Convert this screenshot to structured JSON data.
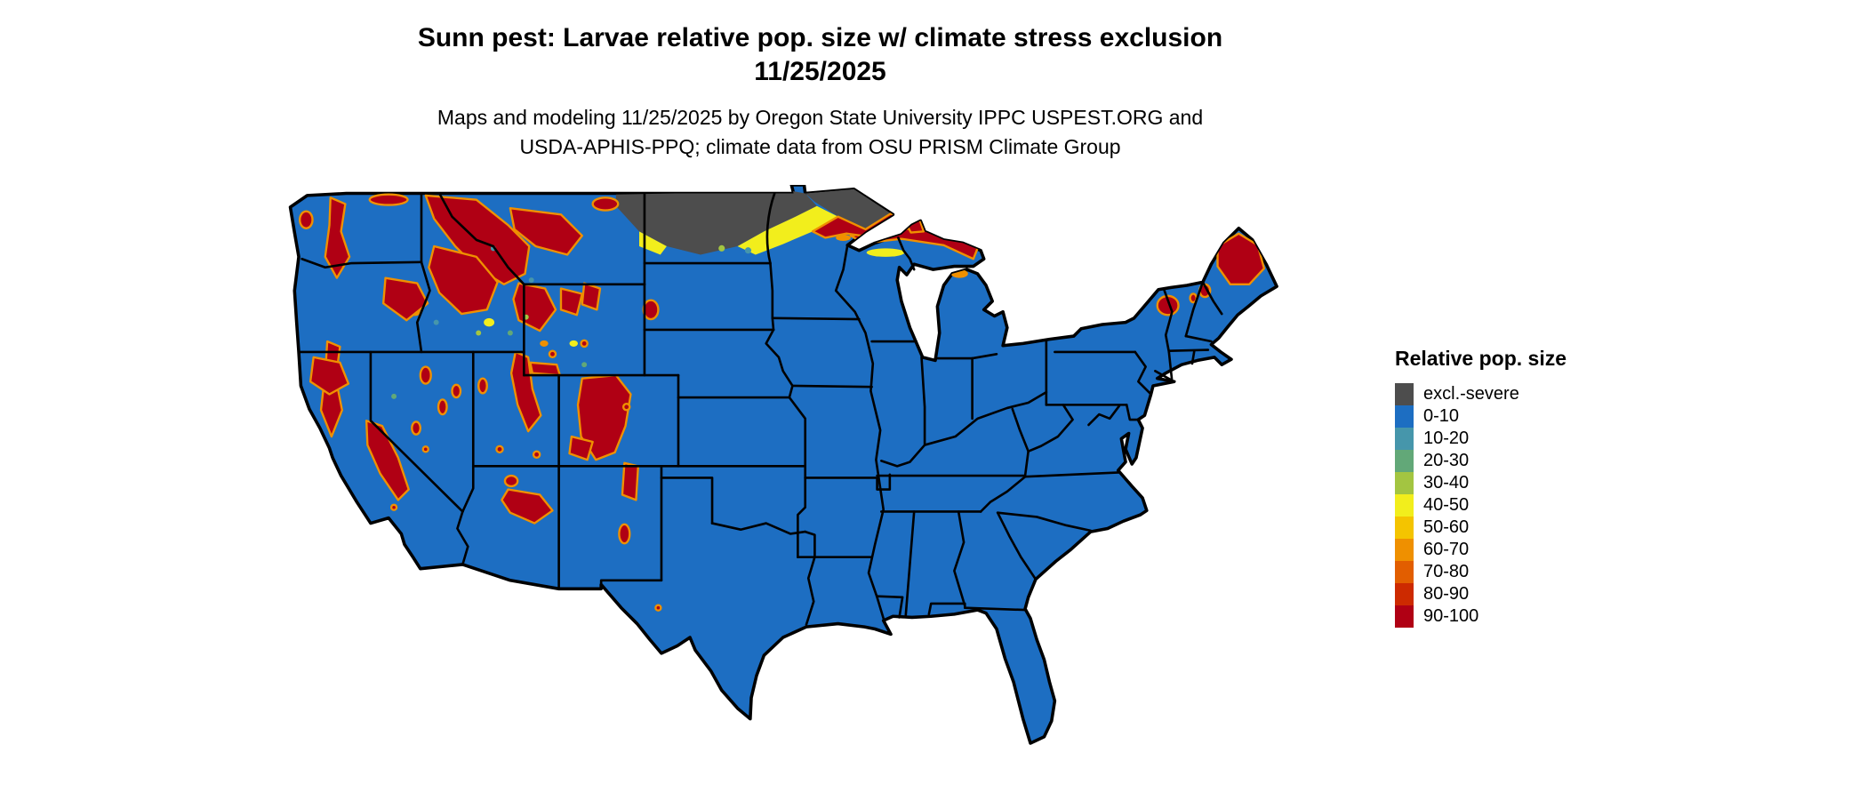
{
  "title": {
    "line1": "Sunn pest: Larvae relative pop. size w/ climate stress exclusion",
    "line2": "11/25/2025"
  },
  "subtitle": {
    "line1": "Maps and modeling 11/25/2025 by Oregon State University IPPC USPEST.ORG and",
    "line2": "USDA-APHIS-PPQ; climate data from OSU PRISM Climate Group"
  },
  "legend": {
    "title": "Relative pop. size",
    "items": [
      {
        "label": "excl.-severe",
        "color": "#4d4d4d"
      },
      {
        "label": "0-10",
        "color": "#1d6ec2"
      },
      {
        "label": "10-20",
        "color": "#4696ab"
      },
      {
        "label": "20-30",
        "color": "#62a878"
      },
      {
        "label": "30-40",
        "color": "#a3c541"
      },
      {
        "label": "40-50",
        "color": "#f2ee1c"
      },
      {
        "label": "50-60",
        "color": "#f4c400"
      },
      {
        "label": "60-70",
        "color": "#ef9000"
      },
      {
        "label": "70-80",
        "color": "#e25e00"
      },
      {
        "label": "80-90",
        "color": "#cd2a00"
      },
      {
        "label": "90-100",
        "color": "#b00014"
      }
    ]
  },
  "map": {
    "region_label": "Contiguous United States",
    "border_color": "#000000",
    "background_color": "#ffffff"
  }
}
